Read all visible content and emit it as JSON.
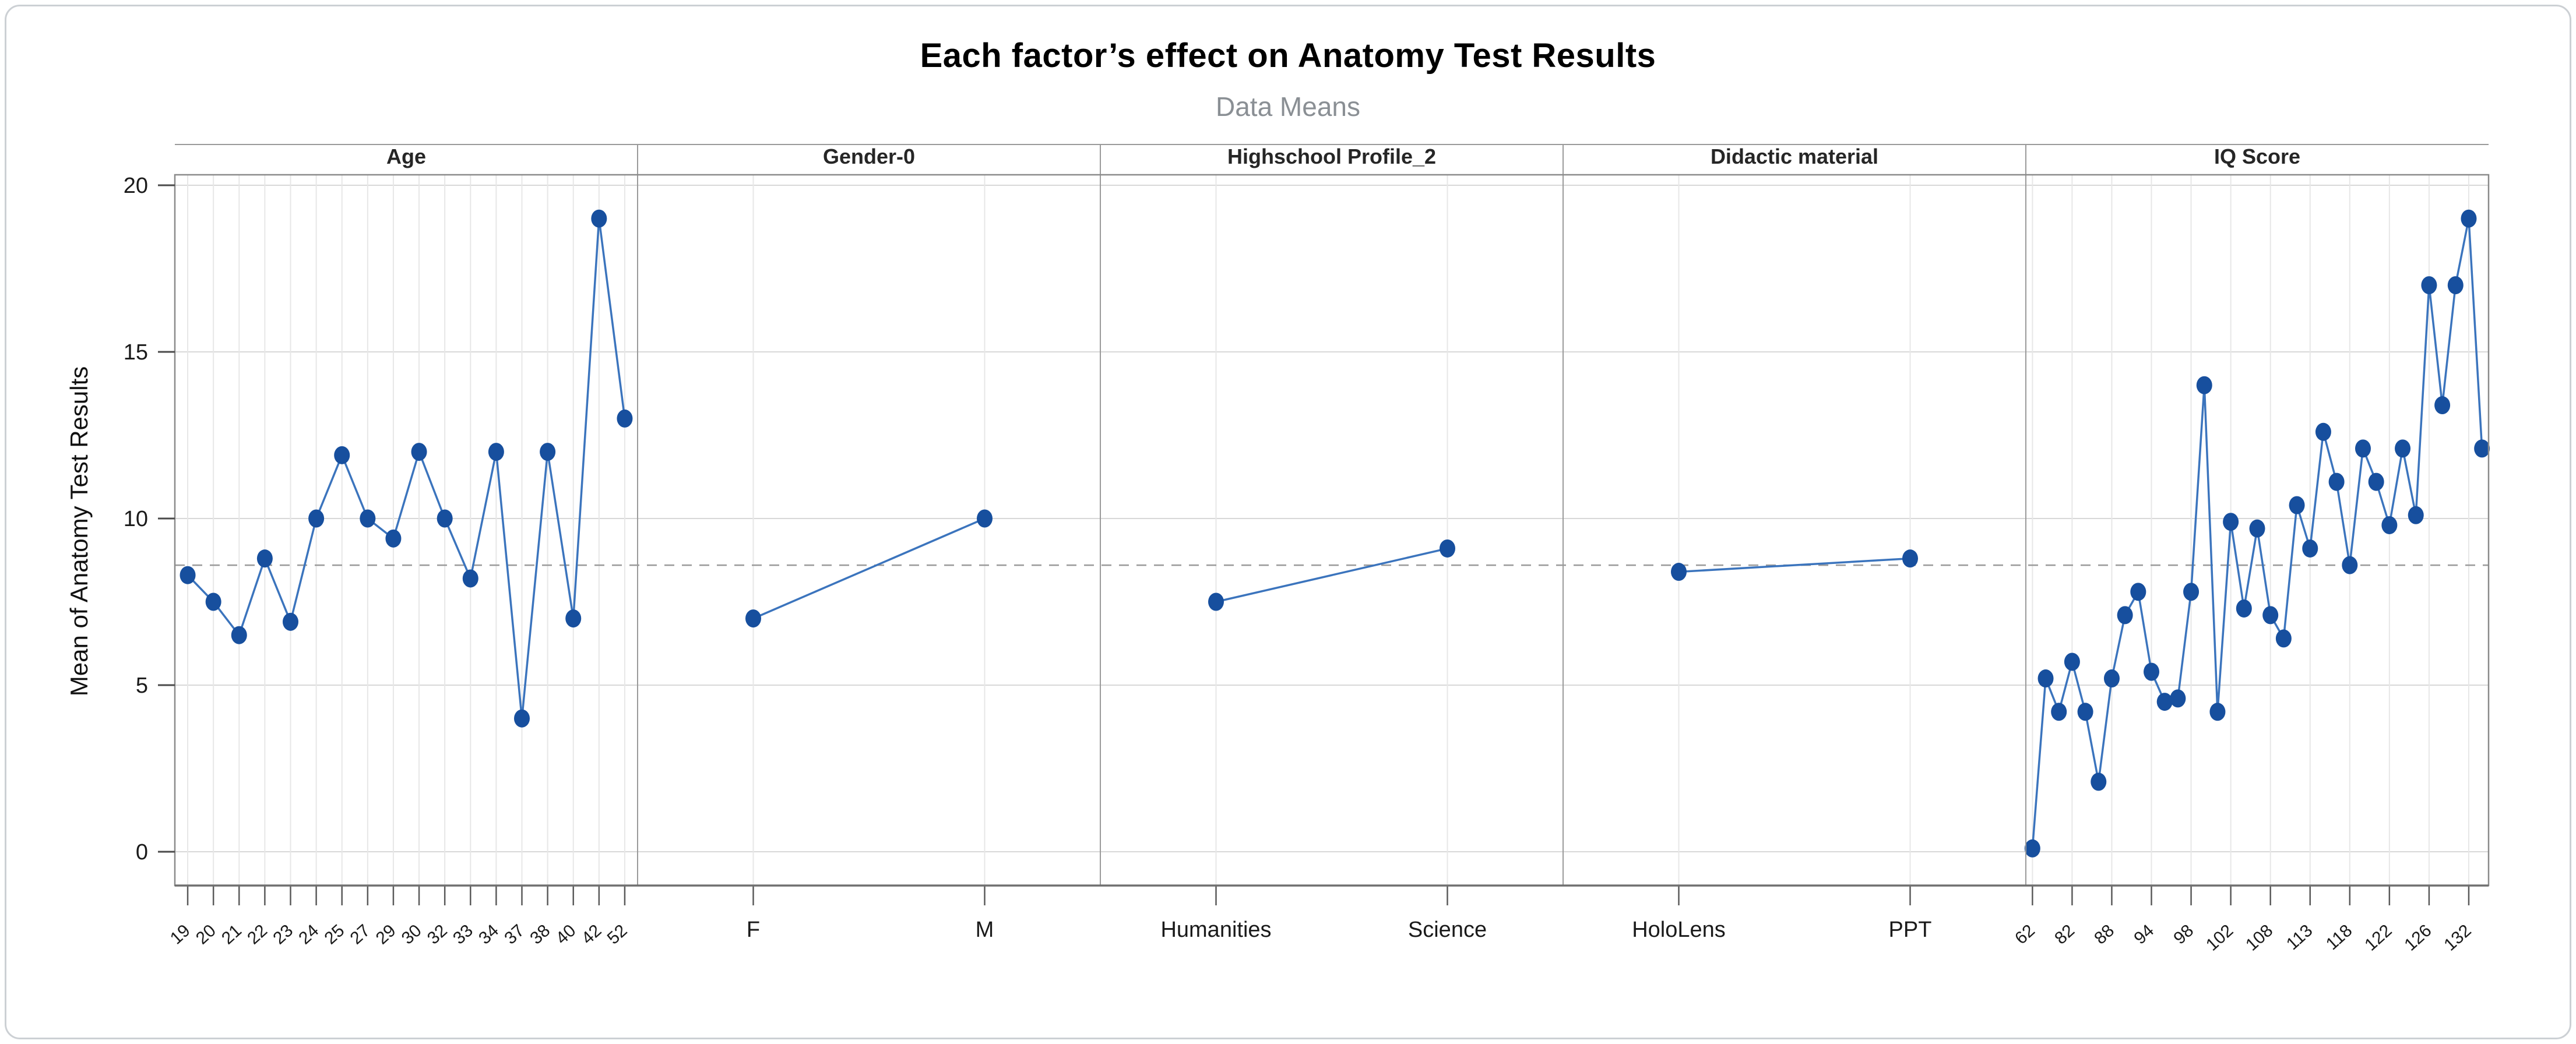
{
  "chart_data": {
    "type": "line",
    "title": "Each factor’s effect on Anatomy Test Results",
    "subtitle": "Data Means",
    "ylabel": "Mean of Anatomy Test Results",
    "ylim": [
      0,
      20
    ],
    "y_ticks": [
      0,
      5,
      10,
      15,
      20
    ],
    "grand_mean": 8.6,
    "grid": true,
    "legend": "none",
    "marker_color": "#174f9e",
    "line_color": "#3b74bd",
    "mean_line_color": "#999999",
    "panels": [
      {
        "name": "Age",
        "rotated_labels": true,
        "categories": [
          "19",
          "20",
          "21",
          "22",
          "23",
          "24",
          "25",
          "27",
          "29",
          "30",
          "32",
          "33",
          "34",
          "37",
          "38",
          "40",
          "42",
          "52"
        ],
        "values": [
          8.3,
          7.5,
          6.5,
          8.8,
          6.9,
          10.0,
          11.9,
          10.0,
          9.4,
          12.0,
          10.0,
          8.2,
          12.0,
          4.0,
          12.0,
          7.0,
          19.0,
          13.0
        ]
      },
      {
        "name": "Gender-0",
        "rotated_labels": false,
        "categories": [
          "F",
          "M"
        ],
        "values": [
          7.0,
          10.0
        ]
      },
      {
        "name": "Highschool Profile_2",
        "rotated_labels": false,
        "categories": [
          "Humanities",
          "Science"
        ],
        "values": [
          7.5,
          9.1
        ]
      },
      {
        "name": "Didactic material",
        "rotated_labels": false,
        "categories": [
          "HoloLens",
          "PPT"
        ],
        "values": [
          8.4,
          8.8
        ]
      },
      {
        "name": "IQ Score",
        "rotated_labels": true,
        "categories": [
          "62",
          "",
          "",
          "82",
          "",
          "",
          "88",
          "",
          "",
          "94",
          "",
          "",
          "98",
          "",
          "",
          "102",
          "",
          "",
          "108",
          "",
          "",
          "113",
          "",
          "",
          "118",
          "",
          "",
          "122",
          "",
          "",
          "126",
          "",
          "",
          "132",
          ""
        ],
        "values": [
          0.1,
          5.2,
          4.2,
          5.7,
          4.2,
          2.1,
          5.2,
          7.1,
          7.8,
          5.4,
          4.5,
          4.6,
          7.8,
          14.0,
          4.2,
          9.9,
          7.3,
          9.7,
          7.1,
          6.4,
          10.4,
          9.1,
          12.6,
          11.1,
          8.6,
          12.1,
          11.1,
          9.8,
          12.1,
          10.1,
          17.0,
          13.4,
          17.0,
          19.0,
          12.1
        ]
      }
    ]
  }
}
